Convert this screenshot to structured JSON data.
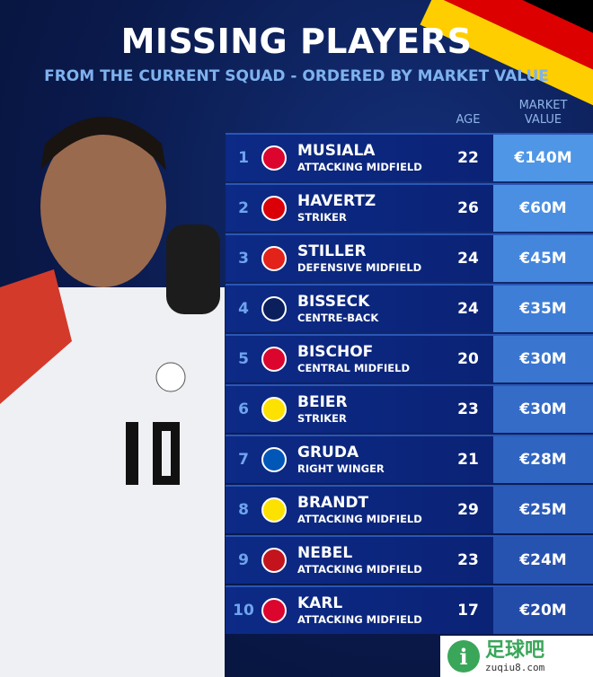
{
  "title": "MISSING PLAYERS",
  "subtitle": "FROM THE CURRENT SQUAD - ORDERED BY MARKET VALUE",
  "headers": {
    "age": "AGE",
    "value_line1": "MARKET",
    "value_line2": "VALUE"
  },
  "flag_colors": [
    "#000000",
    "#dd0000",
    "#ffce00"
  ],
  "players": [
    {
      "rank": "1",
      "name": "MUSIALA",
      "position": "ATTACKING MIDFIELD",
      "age": "22",
      "value": "€140M",
      "club_icon": "bayern-icon",
      "club_color": "#dc052d",
      "value_color": "#4f96e6"
    },
    {
      "rank": "2",
      "name": "HAVERTZ",
      "position": "STRIKER",
      "age": "26",
      "value": "€60M",
      "club_icon": "arsenal-icon",
      "club_color": "#db0007",
      "value_color": "#4a8fe2"
    },
    {
      "rank": "3",
      "name": "STILLER",
      "position": "DEFENSIVE MIDFIELD",
      "age": "24",
      "value": "€45M",
      "club_icon": "stuttgart-icon",
      "club_color": "#e32219",
      "value_color": "#4486dc"
    },
    {
      "rank": "4",
      "name": "BISSECK",
      "position": "CENTRE-BACK",
      "age": "24",
      "value": "€35M",
      "club_icon": "inter-icon",
      "club_color": "#0a1f5c",
      "value_color": "#3f7ed6"
    },
    {
      "rank": "5",
      "name": "BISCHOF",
      "position": "CENTRAL MIDFIELD",
      "age": "20",
      "value": "€30M",
      "club_icon": "bayern-icon",
      "club_color": "#dc052d",
      "value_color": "#3a76d0"
    },
    {
      "rank": "6",
      "name": "BEIER",
      "position": "STRIKER",
      "age": "23",
      "value": "€30M",
      "club_icon": "dortmund-icon",
      "club_color": "#fde100",
      "value_color": "#346cc8"
    },
    {
      "rank": "7",
      "name": "GRUDA",
      "position": "RIGHT WINGER",
      "age": "21",
      "value": "€28M",
      "club_icon": "brighton-icon",
      "club_color": "#0057b8",
      "value_color": "#2f64c0"
    },
    {
      "rank": "8",
      "name": "BRANDT",
      "position": "ATTACKING MIDFIELD",
      "age": "29",
      "value": "€25M",
      "club_icon": "dortmund-icon",
      "club_color": "#fde100",
      "value_color": "#2b5bb8"
    },
    {
      "rank": "9",
      "name": "NEBEL",
      "position": "ATTACKING MIDFIELD",
      "age": "23",
      "value": "€24M",
      "club_icon": "mainz-icon",
      "club_color": "#c3141e",
      "value_color": "#2753b0"
    },
    {
      "rank": "10",
      "name": "KARL",
      "position": "ATTACKING MIDFIELD",
      "age": "17",
      "value": "€20M",
      "club_icon": "bayern-icon",
      "club_color": "#dc052d",
      "value_color": "#234ba8"
    }
  ],
  "watermark": {
    "brand": "足球吧",
    "url": "zuqiu8.com"
  }
}
